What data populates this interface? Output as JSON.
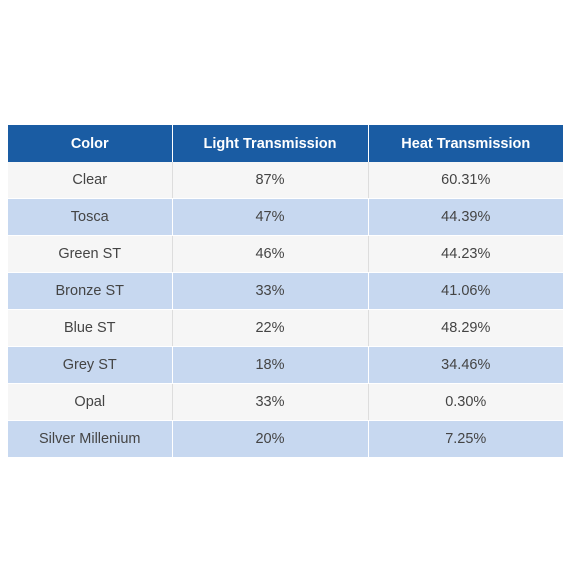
{
  "table": {
    "headers": [
      "Color",
      "Light Transmission",
      "Heat Transmission"
    ],
    "rows": [
      [
        "Clear",
        "87%",
        "60.31%"
      ],
      [
        "Tosca",
        "47%",
        "44.39%"
      ],
      [
        "Green ST",
        "46%",
        "44.23%"
      ],
      [
        "Bronze ST",
        "33%",
        "41.06%"
      ],
      [
        "Blue ST",
        "22%",
        "48.29%"
      ],
      [
        "Grey ST",
        "18%",
        "34.46%"
      ],
      [
        "Opal",
        "33%",
        "0.30%"
      ],
      [
        "Silver Millenium",
        "20%",
        "7.25%"
      ]
    ]
  },
  "colors": {
    "header_bg": "#1a5ca3",
    "row_light": "#f6f6f6",
    "row_blue": "#c7d8f0"
  }
}
